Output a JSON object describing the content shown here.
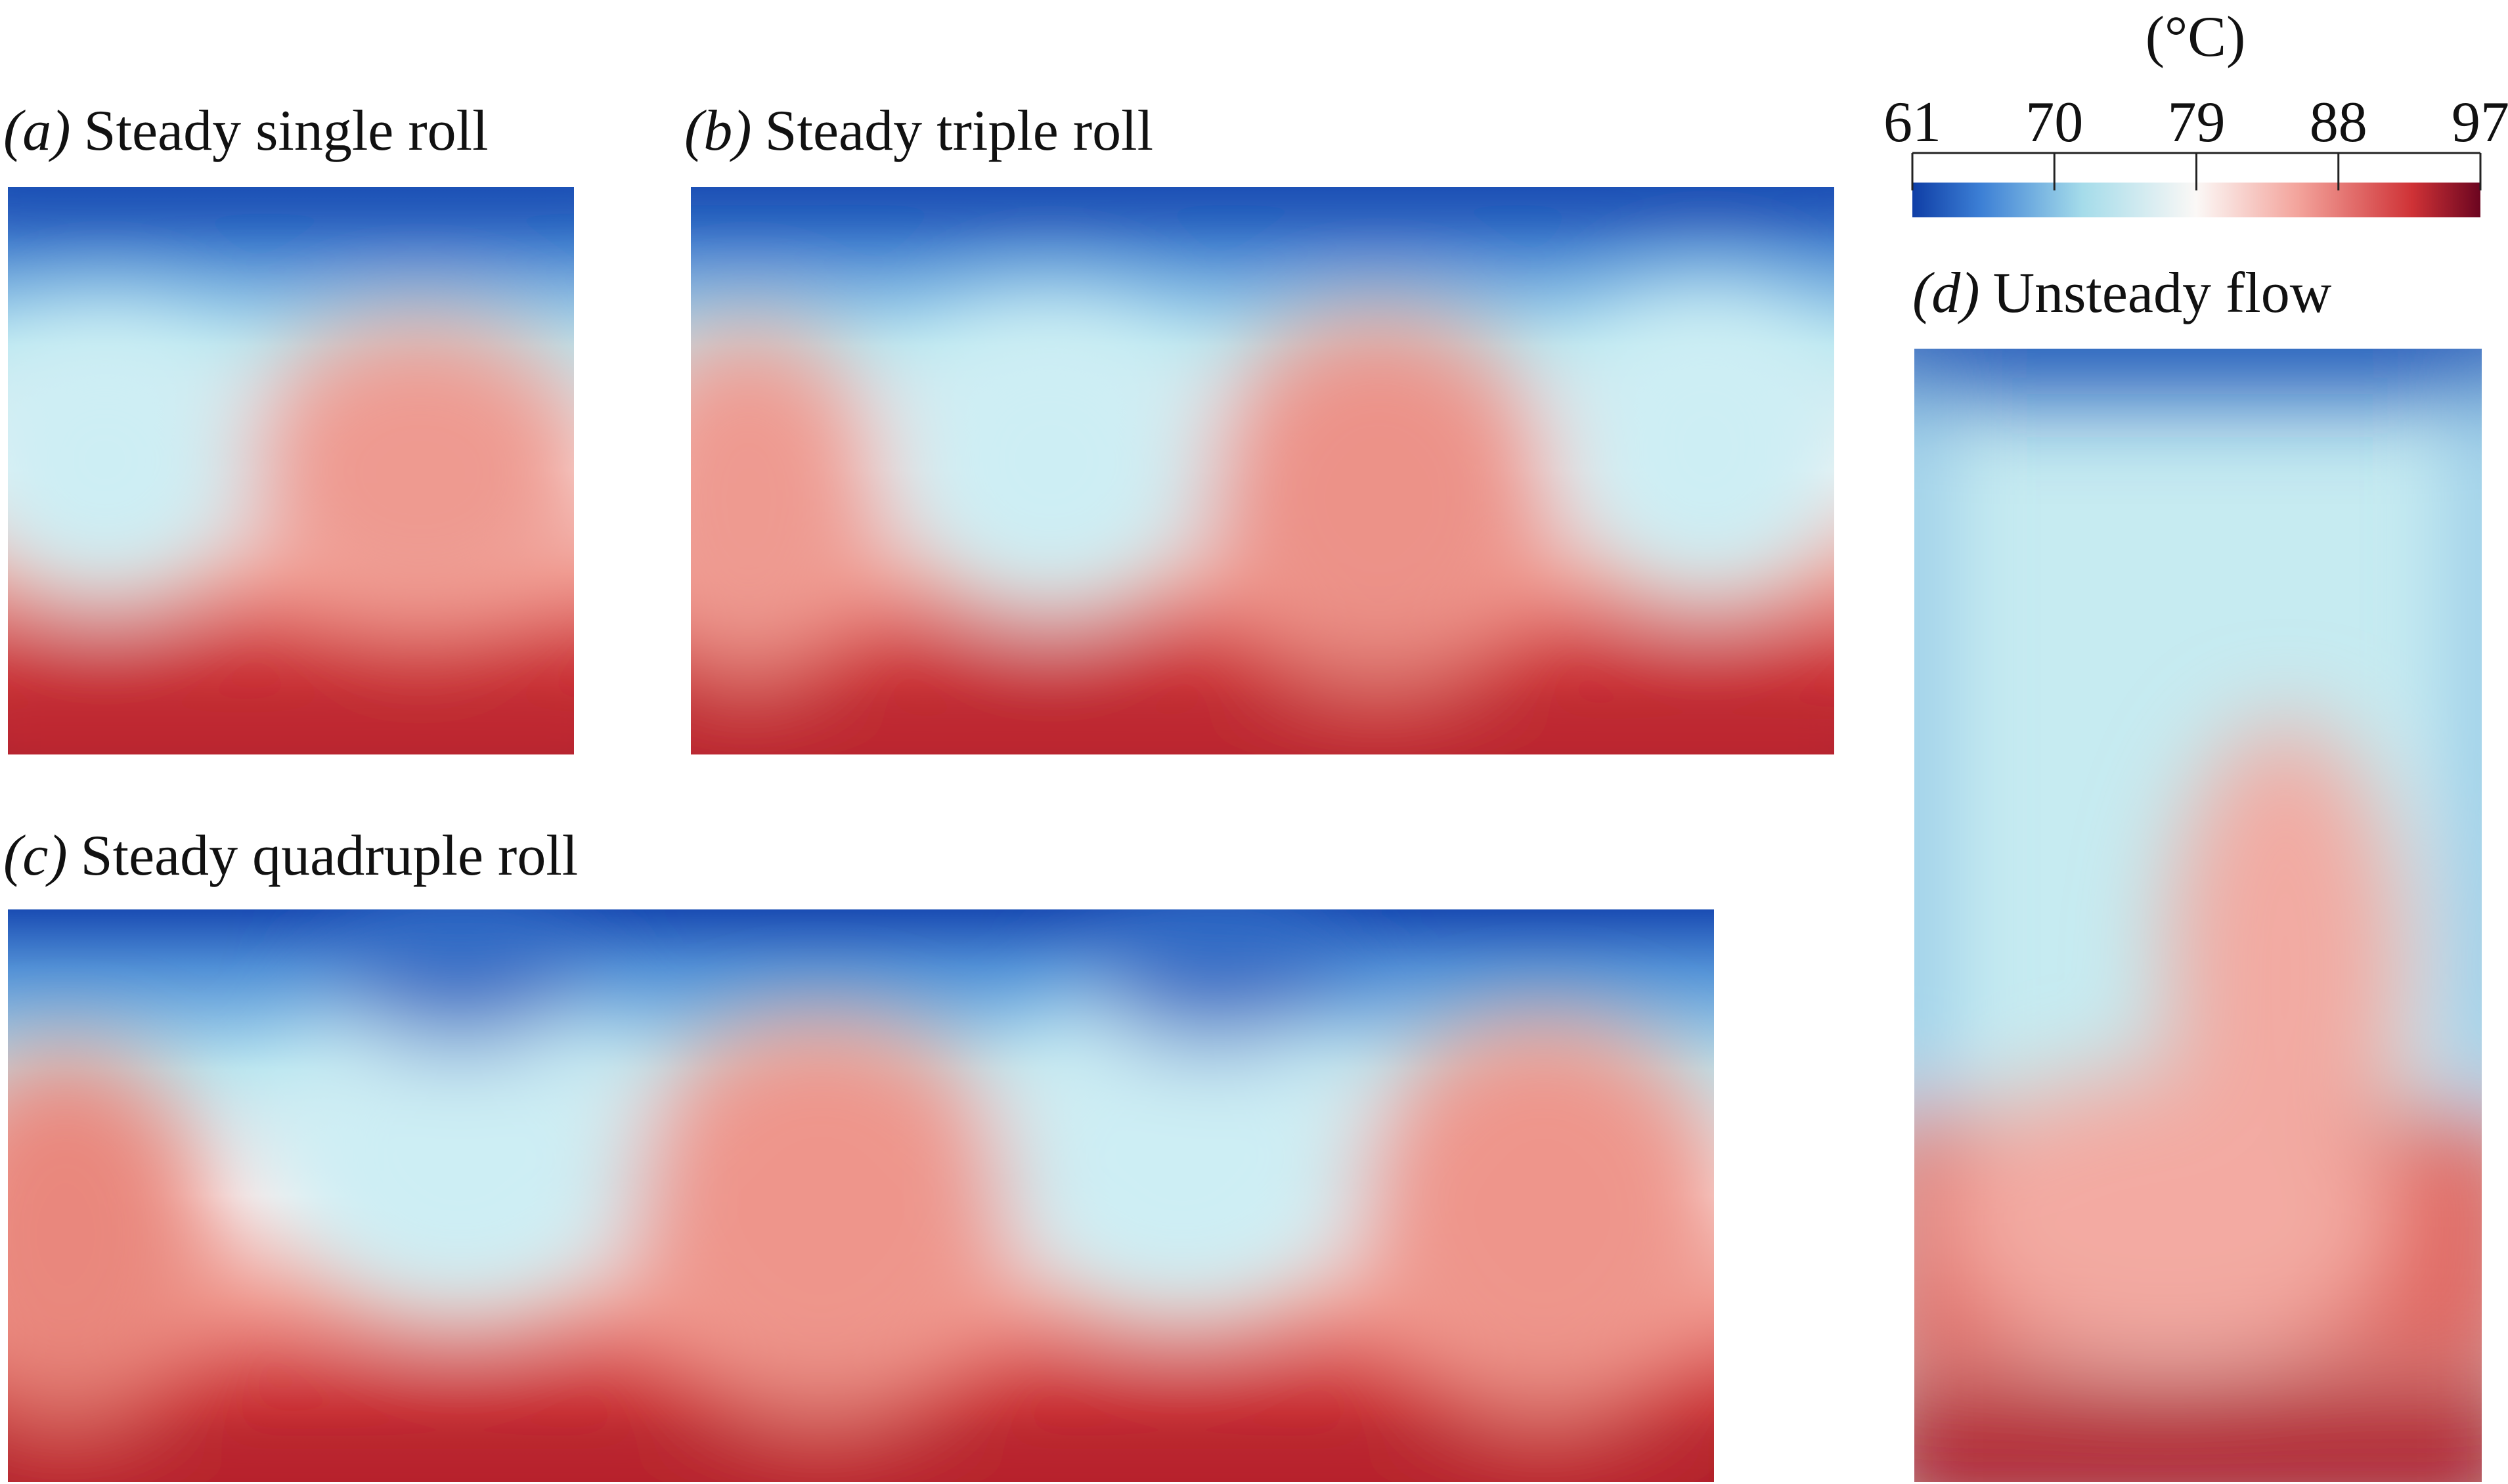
{
  "colorbar": {
    "unit": "(°C)",
    "range": [
      61,
      97
    ],
    "ticks": [
      61,
      70,
      79,
      88,
      97
    ]
  },
  "panels": [
    {
      "label": "(a)",
      "title": "Steady single roll"
    },
    {
      "label": "(b)",
      "title": "Steady triple roll"
    },
    {
      "label": "(c)",
      "title": "Steady quadruple roll"
    },
    {
      "label": "(d)",
      "title": "Unsteady flow"
    }
  ]
}
